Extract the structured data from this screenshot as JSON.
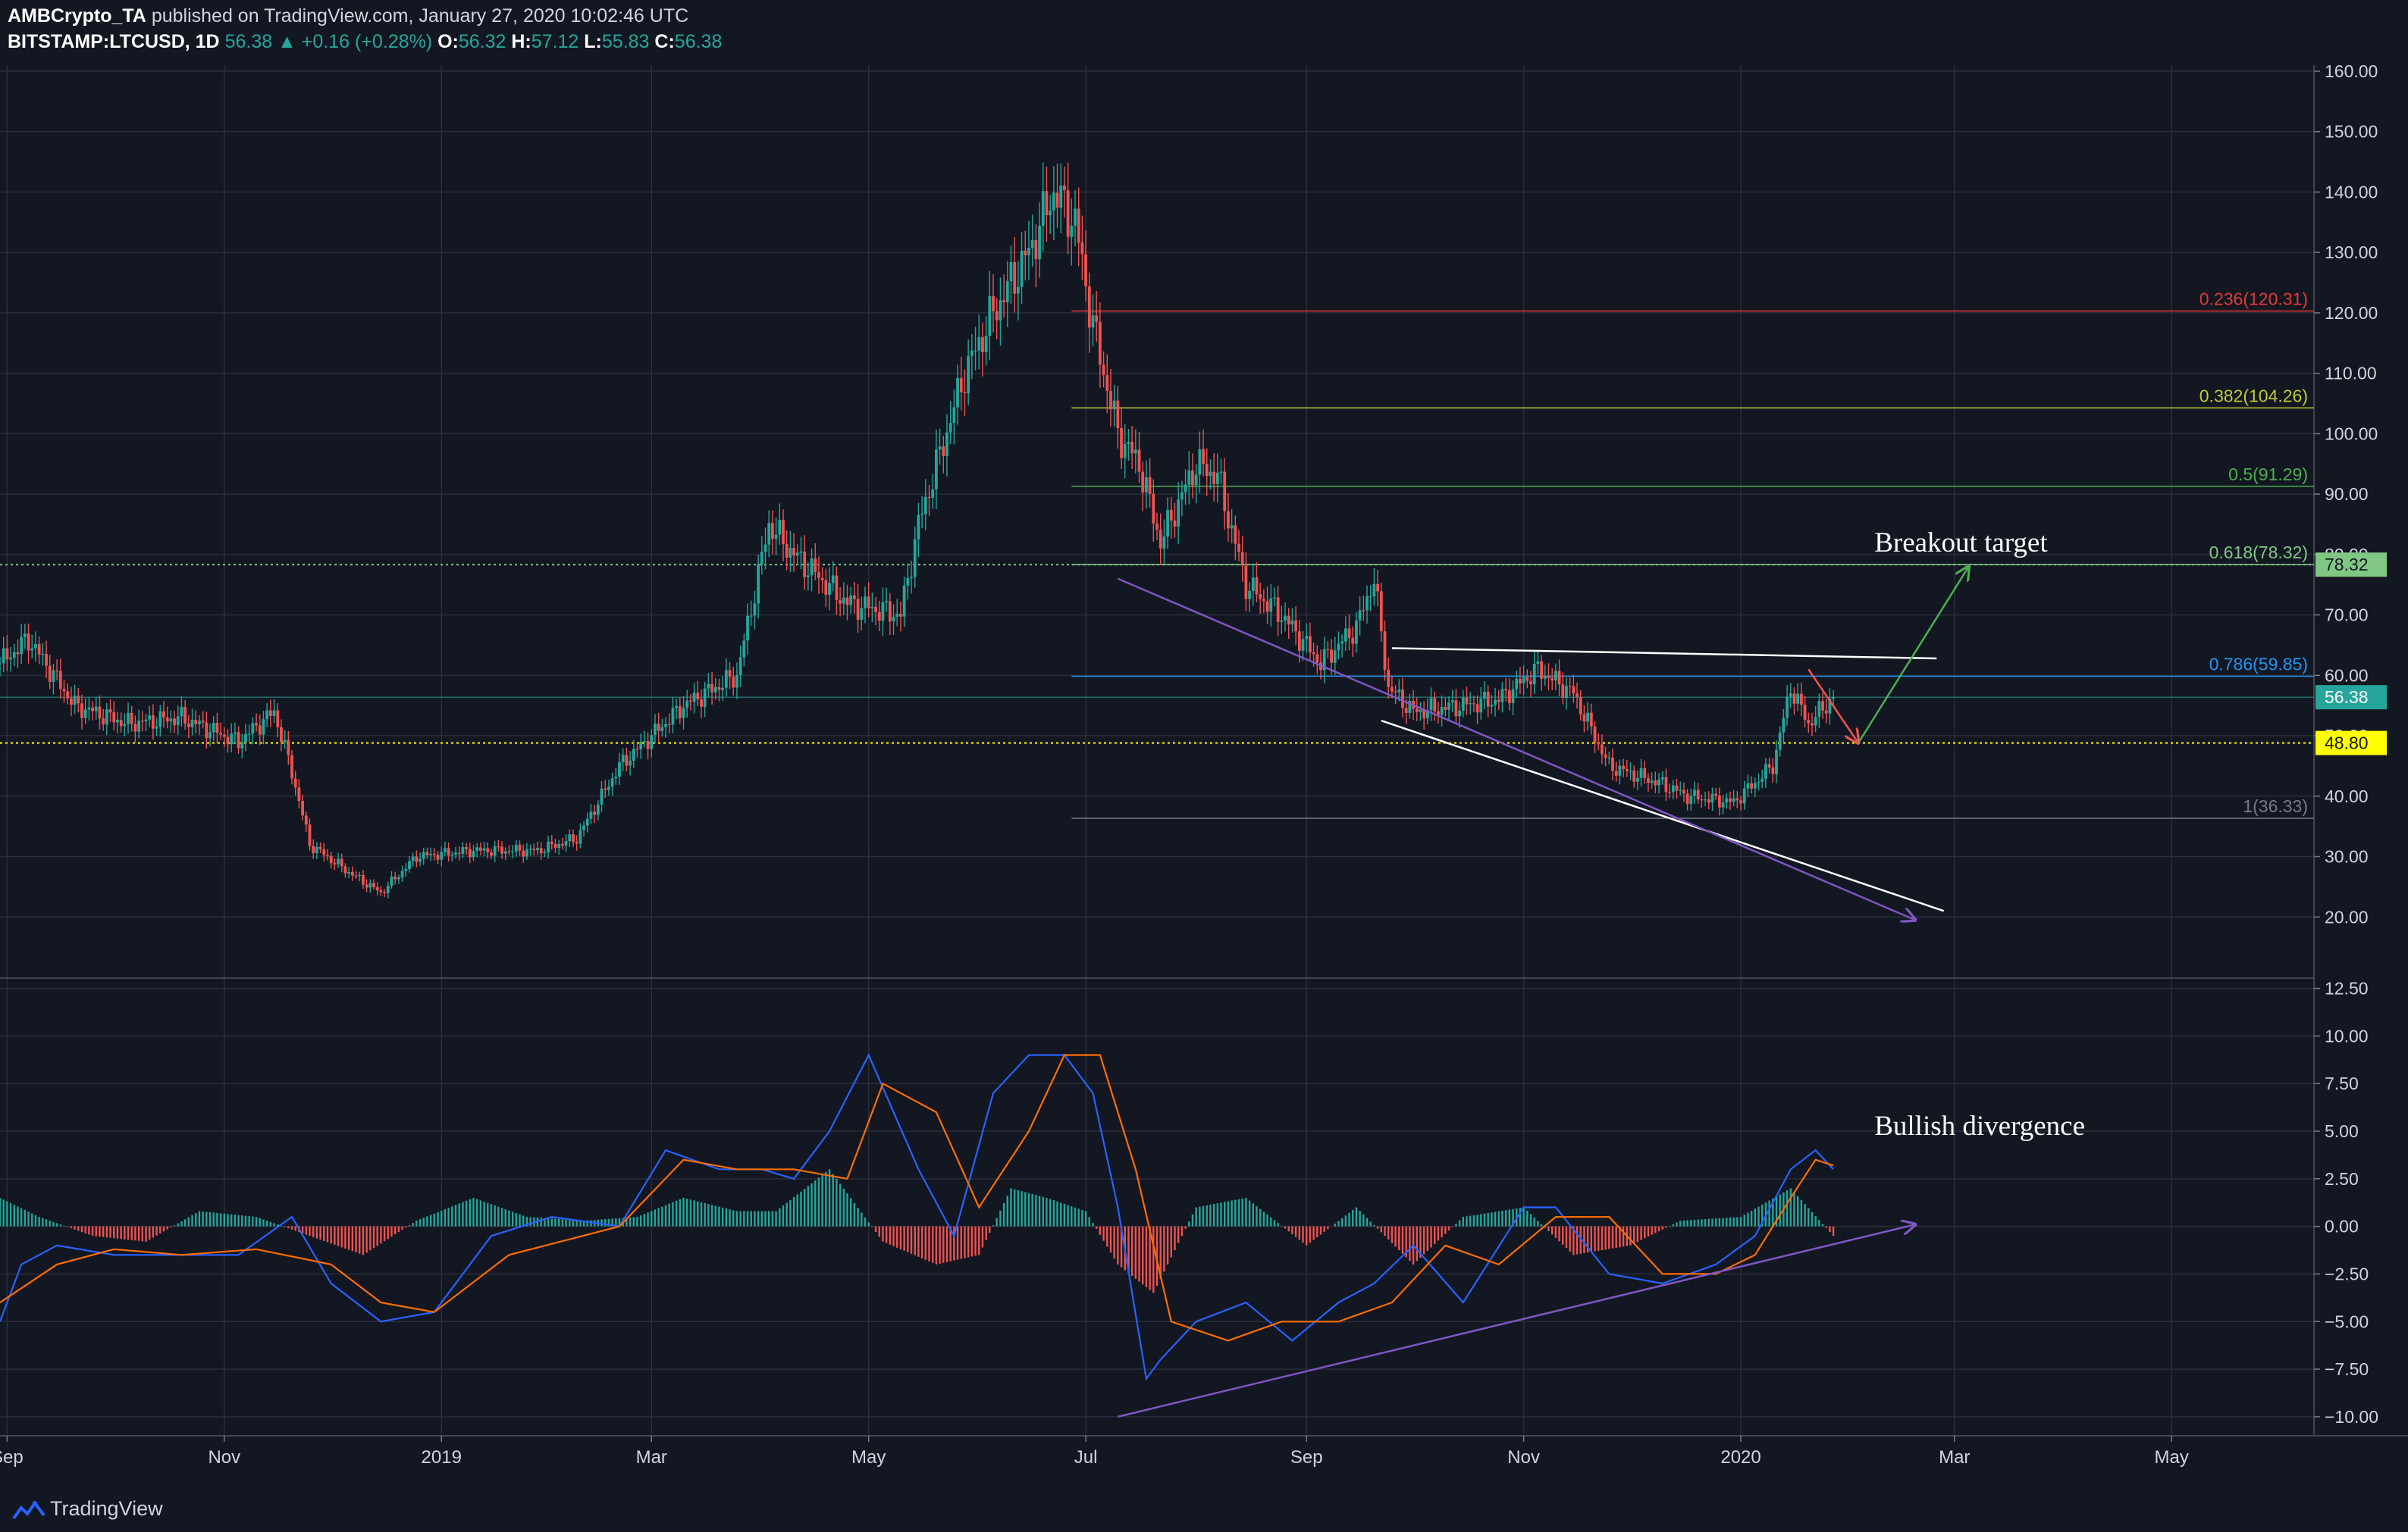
{
  "header": {
    "line1": {
      "author": "AMBCrypto_TA",
      "published": " published on TradingView.com, January 27, 2020 10:02:46 UTC"
    },
    "line2": {
      "symbol": "BITSTAMP:LTCUSD, 1D",
      "last": "56.38",
      "change": "▲ +0.16 (+0.28%)",
      "o_label": "O:",
      "o_val": "56.32",
      "h_label": "H:",
      "h_val": "57.12",
      "l_label": "L:",
      "l_val": "55.83",
      "c_label": "C:",
      "c_val": "56.38"
    }
  },
  "footer": {
    "brand": "TradingView"
  },
  "colors": {
    "background": "#131722",
    "grid": "#2a2e39",
    "up": "#26a69a",
    "down": "#ef5350",
    "macd": "#2962ff",
    "signal": "#ff6d00",
    "trend_purple": "#7e57c2",
    "yellow": "#ffff00",
    "fib_0236": "#e53935",
    "fib_0382": "#c0ca33",
    "fib_05": "#4caf50",
    "fib_0618": "#81c784",
    "fib_0786": "#2196f3",
    "fib_1": "#787b86",
    "hist_pos": "#26a69a",
    "hist_neg": "#ef5350"
  },
  "chart_data": [
    {
      "type": "line",
      "title": "",
      "price_axis": {
        "ticks": [
          "160.00",
          "150.00",
          "140.00",
          "130.00",
          "120.00",
          "110.00",
          "100.00",
          "90.00",
          "80.00",
          "70.00",
          "60.00",
          "50.00",
          "40.00",
          "30.00",
          "20.00"
        ],
        "tick_values": [
          160,
          150,
          140,
          130,
          120,
          110,
          100,
          90,
          80,
          70,
          60,
          50,
          40,
          30,
          20
        ],
        "ylim": [
          10,
          161
        ],
        "badges": [
          {
            "label": "78.32",
            "value": 78.32,
            "color": "#81c784",
            "text_color": "#131722"
          },
          {
            "label": "56.38",
            "value": 56.38,
            "color": "#26a69a",
            "text_color": "#ffffff"
          },
          {
            "label": "48.80",
            "value": 48.8,
            "color": "#ffff00",
            "text_color": "#131722"
          }
        ]
      },
      "time_axis": {
        "labels": [
          "Sep",
          "Nov",
          "2019",
          "Mar",
          "May",
          "Jul",
          "Sep",
          "Nov",
          "2020",
          "Mar",
          "May"
        ],
        "label_dates": [
          "2018-09-01",
          "2018-11-01",
          "2019-01-01",
          "2019-03-01",
          "2019-05-01",
          "2019-07-01",
          "2019-09-01",
          "2019-11-01",
          "2020-01-01",
          "2020-03-01",
          "2020-05-01"
        ],
        "range": [
          "2018-08-30",
          "2020-06-10"
        ]
      },
      "price_series": {
        "name": "",
        "dates": [
          "2018-08-30",
          "2018-09-07",
          "2018-09-20",
          "2018-10-05",
          "2018-10-20",
          "2018-11-05",
          "2018-11-15",
          "2018-11-20",
          "2018-11-25",
          "2018-12-07",
          "2018-12-15",
          "2018-12-25",
          "2019-01-10",
          "2019-01-28",
          "2019-02-08",
          "2019-02-20",
          "2019-03-10",
          "2019-03-25",
          "2019-04-03",
          "2019-04-10",
          "2019-04-25",
          "2019-05-10",
          "2019-05-15",
          "2019-05-28",
          "2019-06-05",
          "2019-06-15",
          "2019-06-22",
          "2019-06-28",
          "2019-07-03",
          "2019-07-10",
          "2019-07-16",
          "2019-07-22",
          "2019-08-01",
          "2019-08-07",
          "2019-08-15",
          "2019-08-25",
          "2019-09-05",
          "2019-09-15",
          "2019-09-20",
          "2019-09-24",
          "2019-10-01",
          "2019-10-15",
          "2019-10-25",
          "2019-11-05",
          "2019-11-15",
          "2019-11-25",
          "2019-12-10",
          "2019-12-17",
          "2019-12-30",
          "2020-01-10",
          "2020-01-15",
          "2020-01-20",
          "2020-01-27"
        ],
        "close": [
          62,
          66,
          55,
          52,
          53,
          49,
          54,
          44,
          32,
          27,
          24,
          30,
          31,
          31,
          33,
          45,
          55,
          60,
          85,
          80,
          72,
          70,
          85,
          110,
          120,
          130,
          140,
          135,
          118,
          100,
          95,
          82,
          95,
          93,
          75,
          70,
          62,
          68,
          76,
          58,
          54,
          55,
          56,
          61,
          57,
          45,
          42,
          40,
          39,
          45,
          58,
          52,
          56.38
        ]
      },
      "horizontal_levels": [
        {
          "label": "0.236(120.31)",
          "value": 120.31,
          "color": "#e53935"
        },
        {
          "label": "0.382(104.26)",
          "value": 104.26,
          "color": "#c0ca33"
        },
        {
          "label": "0.5(91.29)",
          "value": 91.29,
          "color": "#4caf50"
        },
        {
          "label": "0.618(78.32)",
          "value": 78.32,
          "color": "#81c784"
        },
        {
          "label": "0.786(59.85)",
          "value": 59.85,
          "color": "#2196f3"
        },
        {
          "label": "1(36.33)",
          "value": 36.33,
          "color": "#787b86"
        }
      ],
      "fib_start_date": "2019-06-27",
      "dotted_levels": [
        {
          "value": 78.32,
          "color": "#81c784"
        },
        {
          "value": 48.8,
          "color": "#ffff00"
        }
      ],
      "thin_level": {
        "value": 56.38,
        "color": "#26a69a"
      },
      "annotations": [
        {
          "text": "Breakout target",
          "date": "2020-01-30",
          "value": 80.5
        },
        {
          "text": "Bullish divergence",
          "date": "2020-01-30",
          "panel": "macd",
          "value": 4.8
        }
      ],
      "trendlines": [
        {
          "color": "#ffffff",
          "points": [
            [
              "2019-09-25",
              64.5
            ],
            [
              "2020-02-25",
              62.8
            ]
          ]
        },
        {
          "color": "#ffffff",
          "points": [
            [
              "2019-09-22",
              52.5
            ],
            [
              "2020-02-27",
              21
            ]
          ]
        },
        {
          "color": "#7e57c2",
          "arrow": true,
          "points": [
            [
              "2019-07-10",
              76
            ],
            [
              "2020-02-19",
              19.5
            ]
          ]
        },
        {
          "color": "#ef5350",
          "arrow": true,
          "points": [
            [
              "2020-01-20",
              61
            ],
            [
              "2020-02-03",
              48.8
            ]
          ]
        },
        {
          "color": "#4caf50",
          "arrow": true,
          "points": [
            [
              "2020-02-03",
              48.8
            ],
            [
              "2020-03-05",
              78
            ]
          ]
        }
      ]
    },
    {
      "type": "line",
      "title": "",
      "panel": "macd",
      "ticks": [
        "12.50",
        "10.00",
        "7.50",
        "5.00",
        "2.50",
        "0.00",
        "−2.50",
        "−5.00",
        "−7.50",
        "−10.00"
      ],
      "tick_values": [
        12.5,
        10,
        7.5,
        5,
        2.5,
        0,
        -2.5,
        -5,
        -7.5,
        -10
      ],
      "ylim": [
        -11,
        13
      ],
      "series": [
        {
          "color": "#2962ff",
          "dates": [
            "2018-08-30",
            "2018-09-05",
            "2018-09-15",
            "2018-10-01",
            "2018-10-20",
            "2018-11-05",
            "2018-11-20",
            "2018-12-01",
            "2018-12-15",
            "2018-12-30",
            "2019-01-15",
            "2019-02-01",
            "2019-02-20",
            "2019-03-05",
            "2019-03-20",
            "2019-04-01",
            "2019-04-10",
            "2019-04-20",
            "2019-05-01",
            "2019-05-15",
            "2019-05-25",
            "2019-06-05",
            "2019-06-15",
            "2019-06-25",
            "2019-07-03",
            "2019-07-10",
            "2019-07-18",
            "2019-07-22",
            "2019-08-01",
            "2019-08-15",
            "2019-08-28",
            "2019-09-10",
            "2019-09-20",
            "2019-10-01",
            "2019-10-15",
            "2019-11-01",
            "2019-11-10",
            "2019-11-25",
            "2019-12-10",
            "2019-12-25",
            "2020-01-05",
            "2020-01-15",
            "2020-01-22",
            "2020-01-27"
          ],
          "values": [
            -5,
            -2,
            -1,
            -1.5,
            -1.5,
            -1.5,
            0.5,
            -3,
            -5,
            -4.5,
            -0.5,
            0.5,
            0,
            4,
            3,
            3,
            2.5,
            5,
            9,
            3,
            -0.5,
            7,
            9,
            9,
            7,
            1,
            -8,
            -7,
            -5,
            -4,
            -6,
            -4,
            -3,
            -1,
            -4,
            1,
            1,
            -2.5,
            -3,
            -2,
            -0.5,
            3,
            4,
            3
          ]
        },
        {
          "color": "#ff6d00",
          "dates": [
            "2018-08-30",
            "2018-09-15",
            "2018-10-01",
            "2018-10-20",
            "2018-11-10",
            "2018-12-01",
            "2018-12-15",
            "2018-12-30",
            "2019-01-20",
            "2019-02-20",
            "2019-03-10",
            "2019-03-25",
            "2019-04-10",
            "2019-04-25",
            "2019-05-05",
            "2019-05-20",
            "2019-06-01",
            "2019-06-15",
            "2019-06-25",
            "2019-07-05",
            "2019-07-15",
            "2019-07-25",
            "2019-08-10",
            "2019-08-25",
            "2019-09-10",
            "2019-09-25",
            "2019-10-10",
            "2019-10-25",
            "2019-11-10",
            "2019-11-25",
            "2019-12-10",
            "2019-12-25",
            "2020-01-05",
            "2020-01-15",
            "2020-01-22",
            "2020-01-27"
          ],
          "values": [
            -4,
            -2,
            -1.2,
            -1.5,
            -1.2,
            -2,
            -4,
            -4.5,
            -1.5,
            0,
            3.5,
            3,
            3,
            2.5,
            7.5,
            6,
            1,
            5,
            9,
            9,
            3,
            -5,
            -6,
            -5,
            -5,
            -4,
            -1,
            -2,
            0.5,
            0.5,
            -2.5,
            -2.5,
            -1.5,
            1.5,
            3.5,
            3.2
          ]
        }
      ],
      "histogram": {
        "dates": [
          "2018-08-30",
          "2018-09-10",
          "2018-09-25",
          "2018-10-10",
          "2018-10-25",
          "2018-11-10",
          "2018-11-25",
          "2018-12-10",
          "2018-12-25",
          "2019-01-10",
          "2019-01-25",
          "2019-02-10",
          "2019-02-25",
          "2019-03-10",
          "2019-03-25",
          "2019-04-05",
          "2019-04-20",
          "2019-05-05",
          "2019-05-20",
          "2019-06-01",
          "2019-06-10",
          "2019-06-20",
          "2019-07-01",
          "2019-07-10",
          "2019-07-20",
          "2019-08-01",
          "2019-08-15",
          "2019-09-01",
          "2019-09-15",
          "2019-10-01",
          "2019-10-15",
          "2019-11-01",
          "2019-11-15",
          "2019-12-01",
          "2019-12-15",
          "2020-01-01",
          "2020-01-15",
          "2020-01-27"
        ],
        "values": [
          1.5,
          0.5,
          -0.5,
          -0.8,
          0.8,
          0.5,
          -0.5,
          -1.5,
          0.3,
          1.5,
          0.5,
          0.3,
          0.5,
          1.5,
          0.8,
          0.8,
          3,
          -0.8,
          -2,
          -1.5,
          2,
          1.5,
          0.8,
          -2,
          -3.5,
          1,
          1.5,
          -1,
          1,
          -2,
          0.5,
          1,
          -1.5,
          -1,
          0.3,
          0.5,
          2,
          -0.5
        ]
      }
    }
  ]
}
